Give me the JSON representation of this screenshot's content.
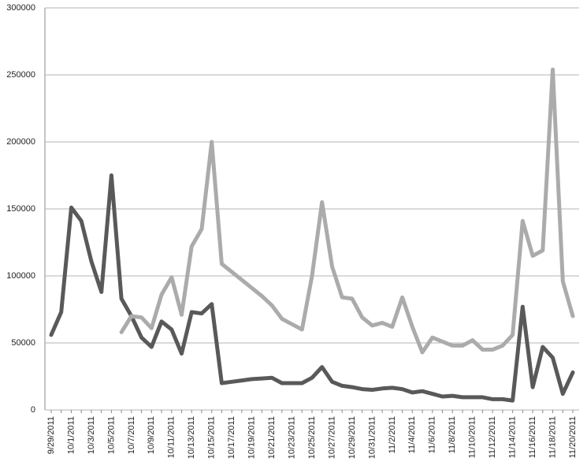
{
  "chart_data": {
    "type": "line",
    "categories": [
      "9/29/2011",
      null,
      "10/1/2011",
      null,
      "10/3/2011",
      null,
      "10/5/2011",
      null,
      "10/7/2011",
      null,
      "10/9/2011",
      null,
      "10/11/2011",
      null,
      "10/13/2011",
      null,
      "10/15/2011",
      null,
      "10/17/2011",
      null,
      "10/19/2011",
      null,
      "10/21/2011",
      null,
      "10/23/2011",
      null,
      "10/25/2011",
      null,
      "10/27/2011",
      null,
      "10/29/2011",
      null,
      "10/31/2011",
      null,
      "11/2/2011",
      null,
      "11/4/2011",
      null,
      "11/6/2011",
      null,
      "11/8/2011",
      null,
      "11/10/2011",
      null,
      "11/12/2011",
      null,
      "11/14/2011",
      null,
      "11/16/2011",
      null,
      "11/18/2011",
      null,
      "11/20/2011"
    ],
    "series": [
      {
        "color": "#595959",
        "values": [
          56000,
          73000,
          151000,
          141000,
          111000,
          88000,
          175000,
          83000,
          70000,
          54000,
          47000,
          66000,
          60000,
          42000,
          73000,
          72000,
          79000,
          20000,
          21000,
          22000,
          23000,
          23500,
          24000,
          20000,
          20000,
          20000,
          24000,
          32000,
          21000,
          18000,
          17000,
          15500,
          15000,
          16000,
          16500,
          15500,
          13000,
          14000,
          12000,
          10000,
          10500,
          9500,
          9500,
          9500,
          8000,
          8000,
          7000,
          77000,
          17000,
          47000,
          39000,
          12000,
          28000
        ]
      },
      {
        "color": "#ababab",
        "values": [
          null,
          null,
          null,
          null,
          null,
          null,
          null,
          58000,
          70000,
          69000,
          61000,
          86000,
          99000,
          71000,
          122000,
          135000,
          200000,
          109000,
          103000,
          97000,
          91000,
          85000,
          78000,
          68000,
          64000,
          60000,
          100000,
          155000,
          107000,
          84000,
          83000,
          69000,
          63000,
          65000,
          62000,
          84000,
          62000,
          43000,
          54000,
          51000,
          48000,
          48000,
          52000,
          45000,
          45000,
          48000,
          56000,
          141000,
          115000,
          119000,
          254000,
          96000,
          70000
        ]
      }
    ],
    "ylim": [
      0,
      300000
    ],
    "yticks": [
      0,
      50000,
      100000,
      150000,
      200000,
      250000,
      300000
    ],
    "grid": true
  }
}
